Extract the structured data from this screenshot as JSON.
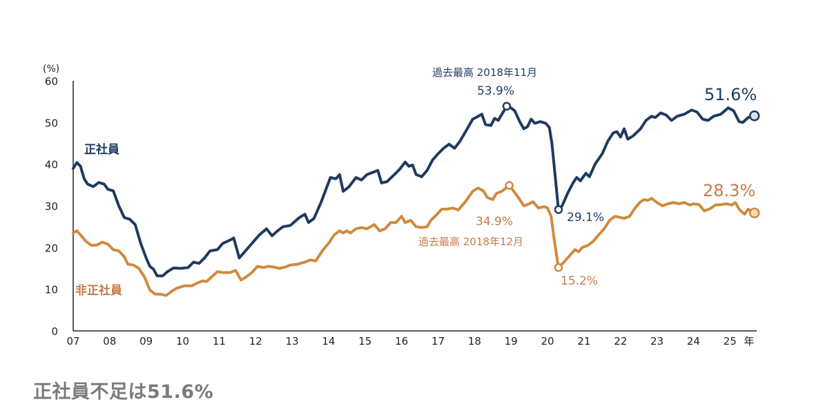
{
  "caption": "正社員不足は51.6%",
  "chart_data": {
    "type": "line",
    "title": "",
    "ylabel": "(%)",
    "xlabel": "年",
    "ylim": [
      0,
      60
    ],
    "xlim": [
      2007,
      2025.9
    ],
    "yticks": [
      "0",
      "10",
      "20",
      "30",
      "40",
      "50",
      "60"
    ],
    "xticks": [
      "07",
      "08",
      "09",
      "10",
      "11",
      "12",
      "13",
      "14",
      "15",
      "16",
      "17",
      "18",
      "19",
      "20",
      "21",
      "22",
      "23",
      "24",
      "25"
    ],
    "x_unit_label": "年",
    "grid": false,
    "colors": {
      "regular": "#1f3a5f",
      "nonregular": "#cf8a3e",
      "regular_text": "#1f3a5f",
      "nonregular_text": "#c87a4a"
    },
    "series": [
      {
        "name": "正社員",
        "key": "regular",
        "points": [
          [
            2007.0,
            39.0
          ],
          [
            2007.1,
            40.4
          ],
          [
            2007.2,
            39.5
          ],
          [
            2007.3,
            36.5
          ],
          [
            2007.4,
            35.2
          ],
          [
            2007.55,
            34.6
          ],
          [
            2007.7,
            35.6
          ],
          [
            2007.85,
            35.2
          ],
          [
            2007.95,
            34.0
          ],
          [
            2008.1,
            33.6
          ],
          [
            2008.25,
            30.0
          ],
          [
            2008.4,
            27.2
          ],
          [
            2008.55,
            26.8
          ],
          [
            2008.7,
            25.5
          ],
          [
            2008.85,
            21.0
          ],
          [
            2009.0,
            17.5
          ],
          [
            2009.1,
            15.5
          ],
          [
            2009.2,
            14.8
          ],
          [
            2009.3,
            13.2
          ],
          [
            2009.45,
            13.2
          ],
          [
            2009.6,
            14.3
          ],
          [
            2009.75,
            15.1
          ],
          [
            2009.95,
            15.0
          ],
          [
            2010.15,
            15.2
          ],
          [
            2010.3,
            16.5
          ],
          [
            2010.45,
            16.2
          ],
          [
            2010.6,
            17.5
          ],
          [
            2010.75,
            19.2
          ],
          [
            2010.95,
            19.5
          ],
          [
            2011.1,
            21.0
          ],
          [
            2011.3,
            21.8
          ],
          [
            2011.4,
            22.3
          ],
          [
            2011.55,
            17.5
          ],
          [
            2011.75,
            19.5
          ],
          [
            2011.95,
            21.5
          ],
          [
            2012.1,
            23.0
          ],
          [
            2012.3,
            24.5
          ],
          [
            2012.45,
            22.8
          ],
          [
            2012.6,
            24.0
          ],
          [
            2012.75,
            25.0
          ],
          [
            2012.95,
            25.3
          ],
          [
            2013.2,
            27.2
          ],
          [
            2013.35,
            28.0
          ],
          [
            2013.45,
            26.0
          ],
          [
            2013.6,
            27.0
          ],
          [
            2013.8,
            31.0
          ],
          [
            2013.95,
            34.5
          ],
          [
            2014.05,
            36.8
          ],
          [
            2014.2,
            36.5
          ],
          [
            2014.3,
            37.5
          ],
          [
            2014.4,
            33.5
          ],
          [
            2014.55,
            34.5
          ],
          [
            2014.75,
            36.8
          ],
          [
            2014.9,
            36.2
          ],
          [
            2015.05,
            37.5
          ],
          [
            2015.2,
            38.0
          ],
          [
            2015.35,
            38.5
          ],
          [
            2015.45,
            35.5
          ],
          [
            2015.6,
            35.8
          ],
          [
            2015.8,
            37.5
          ],
          [
            2015.95,
            38.8
          ],
          [
            2016.1,
            40.5
          ],
          [
            2016.2,
            39.5
          ],
          [
            2016.3,
            39.8
          ],
          [
            2016.4,
            37.5
          ],
          [
            2016.55,
            37.0
          ],
          [
            2016.7,
            38.5
          ],
          [
            2016.85,
            41.0
          ],
          [
            2017.0,
            42.5
          ],
          [
            2017.15,
            43.8
          ],
          [
            2017.3,
            44.8
          ],
          [
            2017.45,
            43.8
          ],
          [
            2017.6,
            45.5
          ],
          [
            2017.8,
            48.5
          ],
          [
            2017.95,
            50.8
          ],
          [
            2018.1,
            51.5
          ],
          [
            2018.2,
            52.0
          ],
          [
            2018.3,
            49.5
          ],
          [
            2018.45,
            49.3
          ],
          [
            2018.55,
            51.0
          ],
          [
            2018.65,
            50.5
          ],
          [
            2018.75,
            52.0
          ],
          [
            2018.88,
            53.9
          ],
          [
            2019.0,
            53.5
          ],
          [
            2019.1,
            52.8
          ],
          [
            2019.25,
            50.0
          ],
          [
            2019.35,
            48.5
          ],
          [
            2019.45,
            49.0
          ],
          [
            2019.55,
            50.8
          ],
          [
            2019.65,
            49.8
          ],
          [
            2019.8,
            50.2
          ],
          [
            2019.95,
            49.8
          ],
          [
            2020.05,
            48.8
          ],
          [
            2020.12,
            45.0
          ],
          [
            2020.2,
            38.0
          ],
          [
            2020.3,
            29.1
          ],
          [
            2020.4,
            30.0
          ],
          [
            2020.55,
            33.0
          ],
          [
            2020.7,
            35.5
          ],
          [
            2020.8,
            36.8
          ],
          [
            2020.9,
            36.0
          ],
          [
            2021.05,
            37.8
          ],
          [
            2021.15,
            37.0
          ],
          [
            2021.3,
            40.0
          ],
          [
            2021.5,
            42.5
          ],
          [
            2021.65,
            45.5
          ],
          [
            2021.8,
            47.5
          ],
          [
            2021.9,
            47.8
          ],
          [
            2022.0,
            46.5
          ],
          [
            2022.1,
            48.5
          ],
          [
            2022.2,
            46.0
          ],
          [
            2022.35,
            46.8
          ],
          [
            2022.55,
            48.5
          ],
          [
            2022.7,
            50.5
          ],
          [
            2022.85,
            51.5
          ],
          [
            2022.95,
            51.2
          ],
          [
            2023.1,
            52.3
          ],
          [
            2023.25,
            51.8
          ],
          [
            2023.4,
            50.5
          ],
          [
            2023.55,
            51.5
          ],
          [
            2023.75,
            52.0
          ],
          [
            2023.95,
            53.0
          ],
          [
            2024.1,
            52.5
          ],
          [
            2024.25,
            50.8
          ],
          [
            2024.4,
            50.5
          ],
          [
            2024.55,
            51.5
          ],
          [
            2024.75,
            52.0
          ],
          [
            2024.95,
            53.5
          ],
          [
            2025.1,
            52.8
          ],
          [
            2025.25,
            50.2
          ],
          [
            2025.35,
            50.0
          ],
          [
            2025.5,
            51.2
          ],
          [
            2025.67,
            51.6
          ]
        ],
        "annotations": [
          {
            "label": "過去最高 2018年11月",
            "x": 2018.88,
            "y": 53.9,
            "value_label": "53.9%"
          },
          {
            "label": "",
            "x": 2020.3,
            "y": 29.1,
            "value_label": "29.1%"
          },
          {
            "label": "",
            "x": 2025.67,
            "y": 51.6,
            "value_label": "51.6%",
            "emphasis": true
          }
        ]
      },
      {
        "name": "非正社員",
        "key": "nonregular",
        "points": [
          [
            2007.0,
            23.5
          ],
          [
            2007.1,
            24.0
          ],
          [
            2007.2,
            23.0
          ],
          [
            2007.35,
            21.5
          ],
          [
            2007.5,
            20.5
          ],
          [
            2007.65,
            20.6
          ],
          [
            2007.8,
            21.3
          ],
          [
            2007.95,
            20.8
          ],
          [
            2008.1,
            19.5
          ],
          [
            2008.25,
            19.2
          ],
          [
            2008.4,
            17.8
          ],
          [
            2008.5,
            16.0
          ],
          [
            2008.65,
            15.8
          ],
          [
            2008.8,
            15.0
          ],
          [
            2008.95,
            13.0
          ],
          [
            2009.1,
            9.8
          ],
          [
            2009.25,
            8.8
          ],
          [
            2009.4,
            8.8
          ],
          [
            2009.55,
            8.5
          ],
          [
            2009.7,
            9.5
          ],
          [
            2009.85,
            10.3
          ],
          [
            2010.05,
            10.8
          ],
          [
            2010.25,
            10.8
          ],
          [
            2010.4,
            11.5
          ],
          [
            2010.55,
            12.0
          ],
          [
            2010.65,
            11.8
          ],
          [
            2010.8,
            13.0
          ],
          [
            2010.95,
            14.2
          ],
          [
            2011.1,
            14.0
          ],
          [
            2011.3,
            14.0
          ],
          [
            2011.45,
            14.5
          ],
          [
            2011.6,
            12.2
          ],
          [
            2011.75,
            13.0
          ],
          [
            2011.9,
            14.0
          ],
          [
            2012.05,
            15.5
          ],
          [
            2012.2,
            15.2
          ],
          [
            2012.35,
            15.5
          ],
          [
            2012.5,
            15.3
          ],
          [
            2012.65,
            15.0
          ],
          [
            2012.8,
            15.3
          ],
          [
            2012.95,
            15.8
          ],
          [
            2013.15,
            16.0
          ],
          [
            2013.35,
            16.5
          ],
          [
            2013.5,
            17.0
          ],
          [
            2013.65,
            16.8
          ],
          [
            2013.85,
            19.5
          ],
          [
            2014.0,
            21.0
          ],
          [
            2014.15,
            23.0
          ],
          [
            2014.3,
            24.0
          ],
          [
            2014.4,
            23.5
          ],
          [
            2014.5,
            24.0
          ],
          [
            2014.6,
            23.5
          ],
          [
            2014.75,
            24.5
          ],
          [
            2014.9,
            24.8
          ],
          [
            2015.05,
            24.5
          ],
          [
            2015.25,
            25.5
          ],
          [
            2015.4,
            24.0
          ],
          [
            2015.55,
            24.5
          ],
          [
            2015.7,
            26.0
          ],
          [
            2015.85,
            26.0
          ],
          [
            2016.0,
            27.5
          ],
          [
            2016.1,
            26.0
          ],
          [
            2016.25,
            26.5
          ],
          [
            2016.4,
            25.0
          ],
          [
            2016.55,
            24.8
          ],
          [
            2016.7,
            25.0
          ],
          [
            2016.8,
            26.5
          ],
          [
            2016.95,
            27.8
          ],
          [
            2017.1,
            29.2
          ],
          [
            2017.25,
            29.2
          ],
          [
            2017.4,
            29.5
          ],
          [
            2017.55,
            29.0
          ],
          [
            2017.75,
            31.0
          ],
          [
            2017.95,
            33.5
          ],
          [
            2018.1,
            34.3
          ],
          [
            2018.25,
            33.5
          ],
          [
            2018.35,
            32.0
          ],
          [
            2018.5,
            31.5
          ],
          [
            2018.6,
            33.0
          ],
          [
            2018.75,
            33.5
          ],
          [
            2018.95,
            34.9
          ],
          [
            2019.05,
            33.8
          ],
          [
            2019.2,
            32.0
          ],
          [
            2019.35,
            30.0
          ],
          [
            2019.5,
            30.5
          ],
          [
            2019.6,
            31.0
          ],
          [
            2019.75,
            29.5
          ],
          [
            2019.9,
            29.8
          ],
          [
            2020.0,
            29.5
          ],
          [
            2020.1,
            27.5
          ],
          [
            2020.18,
            22.0
          ],
          [
            2020.3,
            15.2
          ],
          [
            2020.45,
            16.5
          ],
          [
            2020.6,
            18.0
          ],
          [
            2020.75,
            19.5
          ],
          [
            2020.85,
            19.0
          ],
          [
            2020.95,
            20.0
          ],
          [
            2021.1,
            20.5
          ],
          [
            2021.25,
            21.5
          ],
          [
            2021.4,
            23.0
          ],
          [
            2021.55,
            24.5
          ],
          [
            2021.7,
            26.5
          ],
          [
            2021.85,
            27.5
          ],
          [
            2021.95,
            27.3
          ],
          [
            2022.1,
            27.0
          ],
          [
            2022.25,
            27.5
          ],
          [
            2022.4,
            29.5
          ],
          [
            2022.55,
            31.0
          ],
          [
            2022.65,
            31.5
          ],
          [
            2022.75,
            31.3
          ],
          [
            2022.85,
            31.8
          ],
          [
            2023.0,
            30.8
          ],
          [
            2023.15,
            30.0
          ],
          [
            2023.3,
            30.5
          ],
          [
            2023.45,
            30.8
          ],
          [
            2023.6,
            30.5
          ],
          [
            2023.75,
            30.8
          ],
          [
            2023.9,
            30.2
          ],
          [
            2024.0,
            30.5
          ],
          [
            2024.15,
            30.3
          ],
          [
            2024.3,
            28.8
          ],
          [
            2024.45,
            29.3
          ],
          [
            2024.6,
            30.2
          ],
          [
            2024.75,
            30.3
          ],
          [
            2024.9,
            30.5
          ],
          [
            2025.05,
            30.2
          ],
          [
            2025.15,
            30.8
          ],
          [
            2025.25,
            29.2
          ],
          [
            2025.4,
            28.0
          ],
          [
            2025.5,
            29.2
          ],
          [
            2025.67,
            28.3
          ]
        ],
        "annotations": [
          {
            "label": "過去最高 2018年12月",
            "x": 2018.95,
            "y": 34.9,
            "value_label": "34.9%"
          },
          {
            "label": "",
            "x": 2020.3,
            "y": 15.2,
            "value_label": "15.2%"
          },
          {
            "label": "",
            "x": 2025.67,
            "y": 28.3,
            "value_label": "28.3%",
            "emphasis": true
          }
        ]
      }
    ]
  }
}
